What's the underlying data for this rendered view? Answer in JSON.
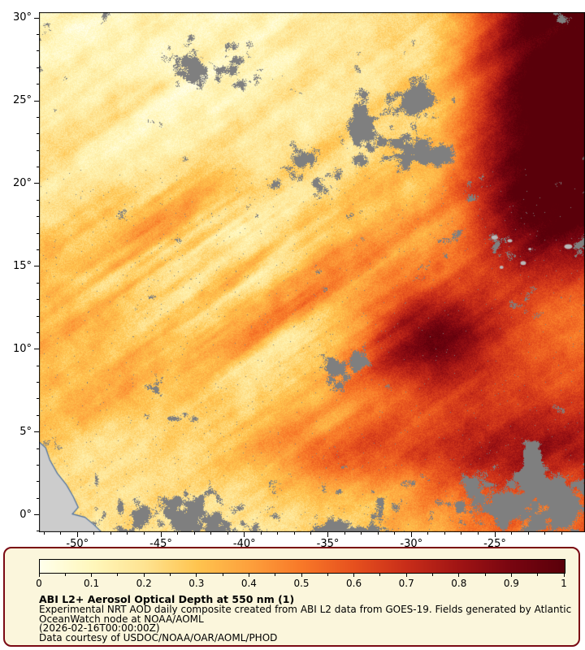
{
  "figure": {
    "title": "ABI L2+ Aerosol Optical Depth at 550 nm (1)",
    "description_lines": [
      "Experimental NRT AOD daily composite created from ABI L2 data from GOES-19. Fields generated by Atlantic",
      "OceanWatch node at NOAA/AOML",
      "(2026-02-16T00:00:00Z)",
      "Data courtesy of USDOC/NOAA/OAR/AOML/PHOD"
    ]
  },
  "axes": {
    "lat_tick_labels": [
      "30°",
      "25°",
      "20°",
      "15°",
      "10°",
      "5°",
      "0°"
    ],
    "lat_tick_values": [
      30,
      25,
      20,
      15,
      10,
      5,
      0
    ],
    "lon_tick_labels": [
      "-50°",
      "-45°",
      "-40°",
      "-35°",
      "-30°",
      "-25°"
    ],
    "lon_tick_values": [
      -50,
      -45,
      -40,
      -35,
      -30,
      -25
    ],
    "lat_range_top": 30.35,
    "lat_range_bottom": -1.05,
    "lon_range_left": -52.3,
    "lon_range_right": -19.6
  },
  "colorbar": {
    "tick_labels": [
      "0",
      "0.1",
      "0.2",
      "0.3",
      "0.4",
      "0.5",
      "0.6",
      "0.7",
      "0.8",
      "0.9",
      "1"
    ],
    "min": 0,
    "max": 1
  },
  "colors": {
    "colormap_stops": [
      "#ffffeb",
      "#fff7bc",
      "#fee391",
      "#fec44f",
      "#fda03c",
      "#f87828",
      "#e6501e",
      "#c82d19",
      "#a01414",
      "#780510",
      "#5a000a"
    ],
    "cloud_gray": "#7f7f7f",
    "land_fill": "#cccccc",
    "island_fill": "#b9b9b9",
    "coast_line": "#4a6fa0",
    "legend_bg": "#fbf6dc",
    "legend_border": "#7a0a14"
  },
  "chart_data": {
    "type": "heatmap",
    "title": "ABI L2+ Aerosol Optical Depth at 550 nm (1)",
    "variable": "Aerosol Optical Depth at 550 nm",
    "value_range": [
      0,
      1
    ],
    "colorbar_ticks": [
      0,
      0.1,
      0.2,
      0.3,
      0.4,
      0.5,
      0.6,
      0.7,
      0.8,
      0.9,
      1
    ],
    "lon_ticks_deg": [
      -50,
      -45,
      -40,
      -35,
      -30,
      -25
    ],
    "lat_ticks_deg": [
      30,
      25,
      20,
      15,
      10,
      5,
      0
    ],
    "legend_position": "bottom",
    "notes": "Saharan dust plume over tropical Atlantic; highest AOD (dark red, 0.8-1.0) along eastern edge and near 10-15N/-30W; gray areas are clouds/no retrieval; South America coastline at lower left; Cape Verde islands near 16N/-24W."
  }
}
